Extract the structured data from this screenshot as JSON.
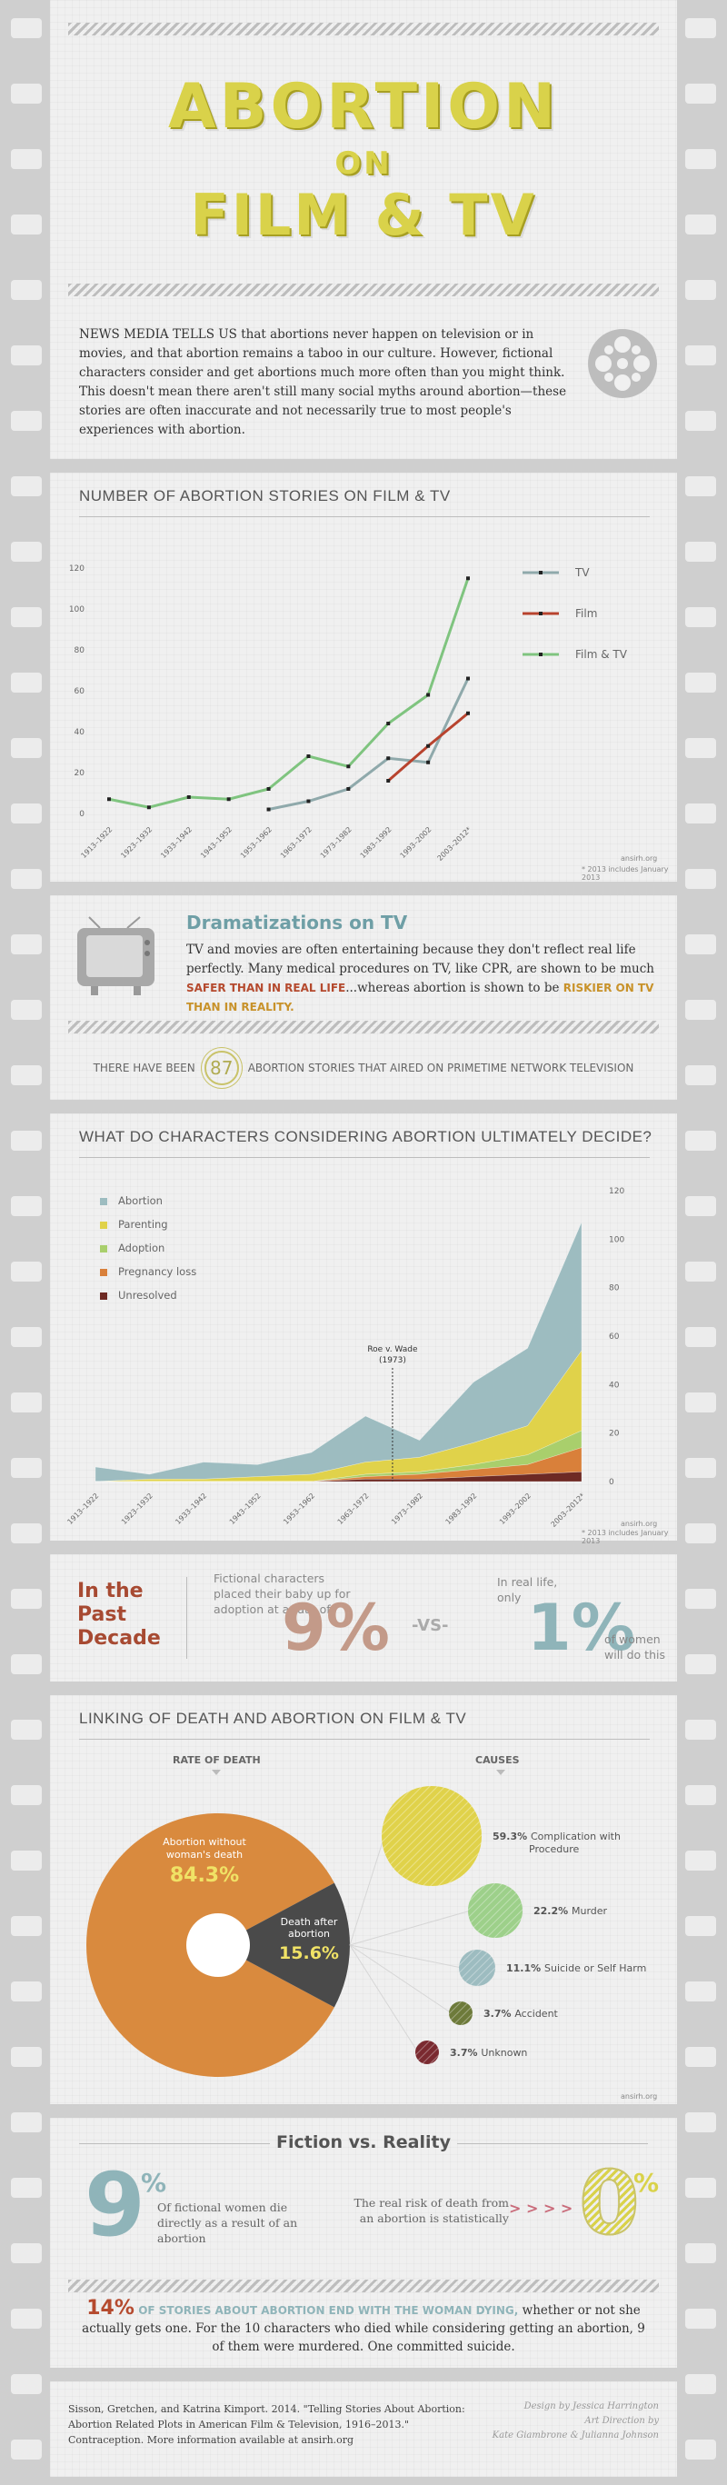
{
  "header": {
    "title_line1": "ABORTION",
    "title_line2": "ON",
    "title_line3": "FILM & TV",
    "intro": "NEWS MEDIA TELLS US that abortions never happen on television or in movies, and that abortion remains a taboo in our culture. However, fictional characters consider and get abortions much more often than you might think. This doesn't mean there aren't still many social myths around abortion—these stories are often inaccurate and not necessarily true to most people's experiences with abortion."
  },
  "stories_chart": {
    "title": "NUMBER OF ABORTION STORIES ON FILM & TV",
    "source": "ansirh.org",
    "footnote": "* 2013 includes January 2013",
    "chart_data": {
      "type": "line",
      "categories": [
        "1913–1922",
        "1923–1932",
        "1933–1942",
        "1943–1952",
        "1953–1962",
        "1963–1972",
        "1973–1982",
        "1983–1992",
        "1993–2002",
        "2003–2012*"
      ],
      "ylim": [
        0,
        120
      ],
      "yticks": [
        "0",
        "20",
        "40",
        "60",
        "80",
        "100",
        "120"
      ],
      "series": [
        {
          "name": "TV",
          "color": "#8fa9ab",
          "values": [
            null,
            null,
            null,
            null,
            2,
            6,
            12,
            27,
            25,
            66
          ]
        },
        {
          "name": "Film",
          "color": "#b8432e",
          "values": [
            null,
            null,
            null,
            null,
            null,
            null,
            null,
            16,
            33,
            49
          ]
        },
        {
          "name": "Film & TV",
          "color": "#7fc47f",
          "values": [
            7,
            3,
            8,
            7,
            12,
            28,
            23,
            44,
            58,
            115
          ]
        }
      ]
    }
  },
  "dramatizations": {
    "heading": "Dramatizations on TV",
    "text_a": "TV and movies are often entertaining because they don't reflect real life perfectly. Many medical procedures on TV, like CPR, are shown to be much ",
    "text_b": "SAFER THAN IN REAL LIFE",
    "text_c": "...whereas abortion is shown to be ",
    "text_d": "RISKIER ON TV THAN IN REALITY.",
    "count_prefix": "THERE HAVE BEEN",
    "count_value": "87",
    "count_suffix": "ABORTION STORIES THAT AIRED ON PRIMETIME NETWORK TELEVISION"
  },
  "decide_chart": {
    "title": "WHAT DO CHARACTERS CONSIDERING ABORTION ULTIMATELY DECIDE?",
    "annotation": "Roe v. Wade",
    "annotation_year": "(1973)",
    "source": "ansirh.org",
    "footnote": "* 2013 includes January 2013",
    "chart_data": {
      "type": "area",
      "categories": [
        "1913–1922",
        "1923–1932",
        "1933–1942",
        "1943–1952",
        "1953–1962",
        "1963–1972",
        "1973–1982",
        "1983–1992",
        "1993–2002",
        "2003–2012*"
      ],
      "ylim": [
        0,
        120
      ],
      "yticks": [
        "0",
        "20",
        "40",
        "60",
        "80",
        "100",
        "120"
      ],
      "series": [
        {
          "name": "Unresolved",
          "color": "#6e2a24",
          "values": [
            0,
            0,
            0,
            0,
            0,
            1,
            1,
            2,
            3,
            4
          ]
        },
        {
          "name": "Pregnancy loss",
          "color": "#d9803a",
          "values": [
            0,
            0,
            0,
            0,
            0,
            1,
            2,
            3,
            4,
            10
          ]
        },
        {
          "name": "Adoption",
          "color": "#a9cf6c",
          "values": [
            0,
            0,
            0,
            0,
            0,
            1,
            1,
            2,
            4,
            7
          ]
        },
        {
          "name": "Parenting",
          "color": "#e0d24a",
          "values": [
            0,
            1,
            1,
            2,
            3,
            5,
            6,
            9,
            12,
            33
          ]
        },
        {
          "name": "Abortion",
          "color": "#9dbcc0",
          "values": [
            6,
            2,
            7,
            5,
            9,
            19,
            7,
            25,
            32,
            53
          ]
        }
      ]
    }
  },
  "past_decade": {
    "label": "In the Past Decade",
    "fiction_text": "Fictional characters placed their baby up for adoption at a rate of",
    "fiction_value": "9%",
    "vs": "-VS-",
    "real_text": "In real life, only",
    "real_value": "1%",
    "real_suffix": "of women will do this"
  },
  "death": {
    "title": "LINKING OF DEATH AND ABORTION ON FILM & TV",
    "rate_heading": "RATE OF DEATH",
    "causes_heading": "CAUSES",
    "source": "ansirh.org",
    "chart_data": {
      "type": "pie",
      "slices": [
        {
          "label": "Abortion without woman's death",
          "value": 84.3,
          "value_label": "84.3%",
          "color": "#d98a3e"
        },
        {
          "label": "Death after abortion",
          "value": 15.6,
          "value_label": "15.6%",
          "color": "#4a4a4a"
        }
      ]
    },
    "causes": [
      {
        "pct": "59.3%",
        "label": "Complication with Procedure",
        "color": "#e0d24a"
      },
      {
        "pct": "22.2%",
        "label": "Murder",
        "color": "#9dd08a"
      },
      {
        "pct": "11.1%",
        "label": "Suicide or Self Harm",
        "color": "#9dbcc0"
      },
      {
        "pct": "3.7%",
        "label": "Accident",
        "color": "#6d7a3a"
      },
      {
        "pct": "3.7%",
        "label": "Unknown",
        "color": "#7a2a30"
      }
    ]
  },
  "fiction_reality": {
    "heading": "Fiction vs. Reality",
    "left_value": "9",
    "left_unit": "%",
    "left_text": "Of fictional women die directly as a result of an abortion",
    "right_text": "The real risk of death from an abortion is statistically",
    "arrows": "> > > >",
    "right_value": "0",
    "right_unit": "%",
    "summary_value": "14%",
    "summary_highlight": "OF STORIES ABOUT ABORTION END WITH THE WOMAN DYING,",
    "summary_text": " whether or not she actually gets one. For the 10 characters who died while considering getting an abortion, 9 of them were murdered. One committed suicide."
  },
  "footer": {
    "citation": "Sisson, Gretchen, and Katrina Kimport. 2014. \"Telling Stories About Abortion: Abortion Related Plots in American Film & Television, 1916–2013.\" Contraception. More information available at ansirh.org",
    "credit1": "Design by Jessica Harrington",
    "credit2": "Art Direction by",
    "credit3": "Kate Giambrone & Julianna Johnson"
  }
}
